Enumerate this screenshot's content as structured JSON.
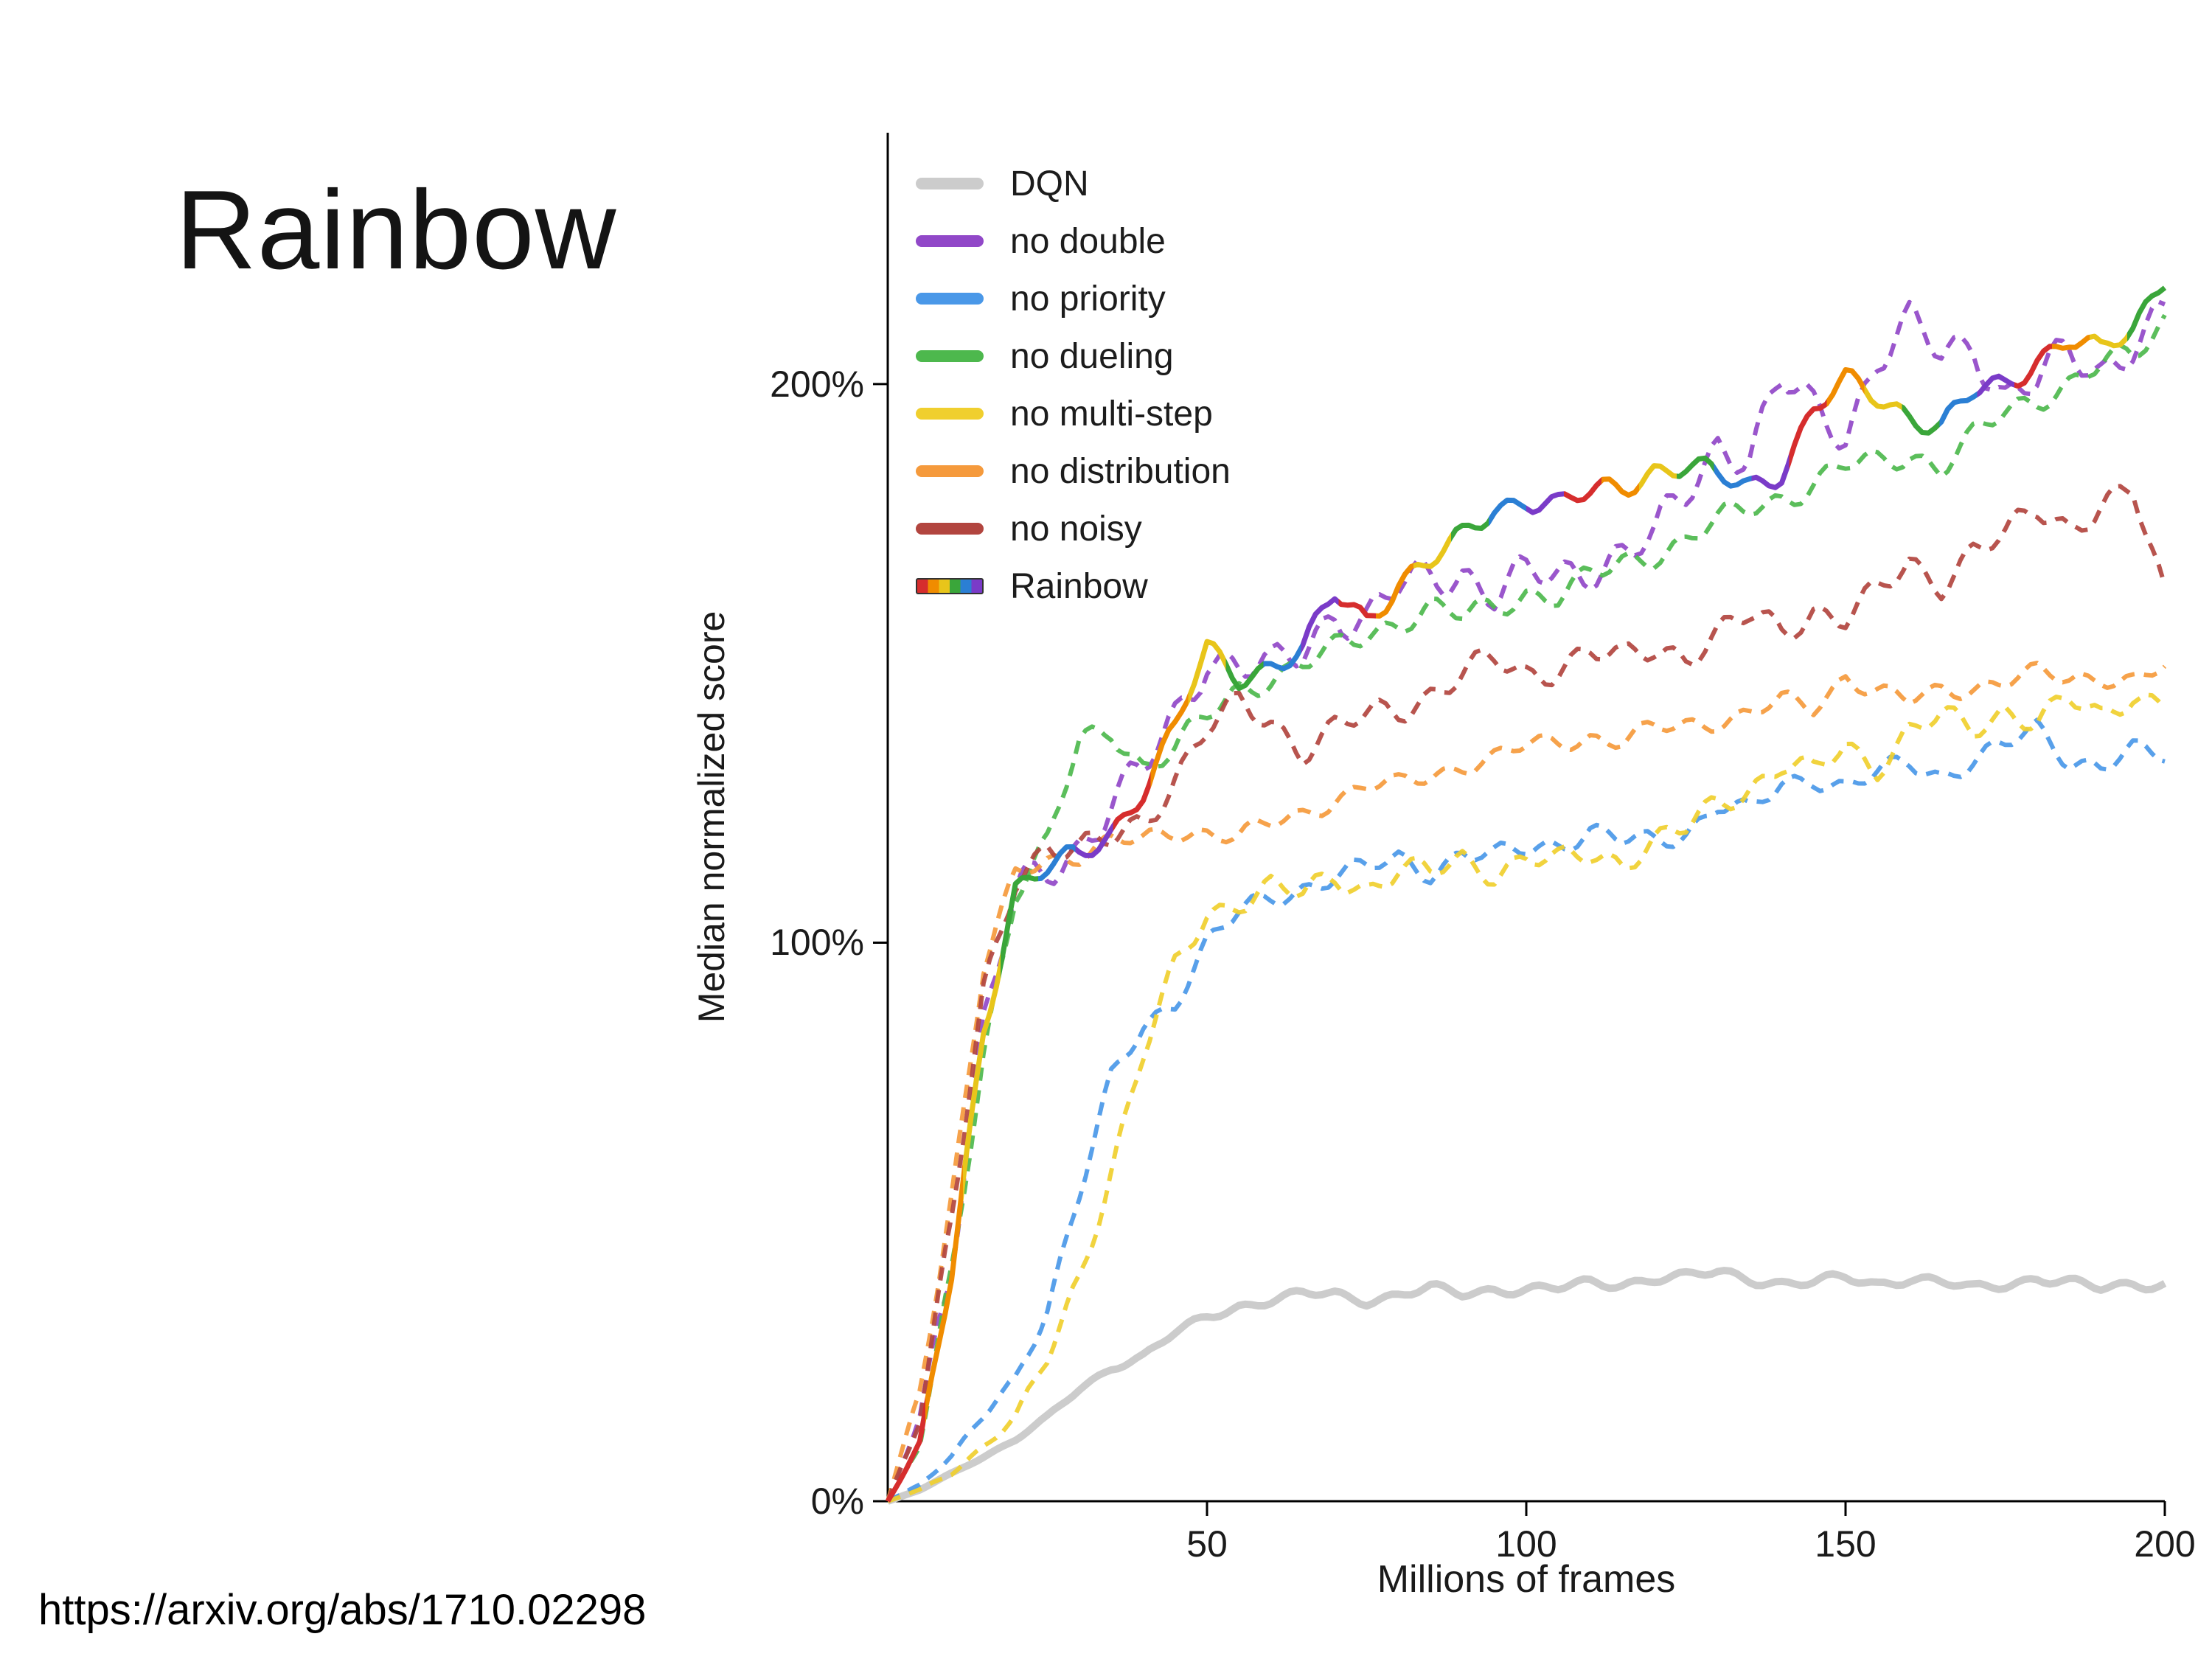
{
  "slide": {
    "title": "Rainbow",
    "url": "https://arxiv.org/abs/1710.02298"
  },
  "chart_data": {
    "type": "line",
    "title": "",
    "xlabel": "Millions of frames",
    "ylabel": "Median normalized score",
    "xlim": [
      0,
      200
    ],
    "ylim": [
      0,
      245
    ],
    "x_start": 0,
    "x_step": 5,
    "grid": false,
    "legend_position": "top-left",
    "x_ticks": [
      {
        "value": 50,
        "label": "50"
      },
      {
        "value": 100,
        "label": "100"
      },
      {
        "value": 150,
        "label": "150"
      },
      {
        "value": 200,
        "label": "200"
      }
    ],
    "y_ticks": [
      {
        "value": 0,
        "label": "0%"
      },
      {
        "value": 100,
        "label": "100%"
      },
      {
        "value": 200,
        "label": "200%"
      }
    ],
    "rainbow_colors": [
      "#d62d2d",
      "#f08c00",
      "#e8c51a",
      "#3aa63a",
      "#2b7fd4",
      "#7a3bc8"
    ],
    "series": [
      {
        "name": "DQN",
        "color": "#cccccc",
        "style": "solid",
        "width": 10,
        "noise": 1.2,
        "rainbow": false,
        "values": [
          0,
          2,
          5,
          8,
          11,
          15,
          20,
          24,
          26,
          30,
          33,
          35,
          36,
          37,
          37,
          36,
          37,
          38,
          37,
          38,
          38,
          38,
          39,
          39,
          40,
          40,
          41,
          40,
          39,
          39,
          40,
          39,
          40,
          39,
          38,
          39,
          40,
          39,
          38,
          39,
          39
        ]
      },
      {
        "name": "no double",
        "color": "#9148c8",
        "style": "dashed",
        "width": 6,
        "noise": 5,
        "rainbow": false,
        "values": [
          0,
          15,
          45,
          85,
          108,
          113,
          118,
          125,
          130,
          140,
          152,
          150,
          148,
          152,
          160,
          158,
          163,
          165,
          167,
          163,
          165,
          165,
          168,
          170,
          172,
          180,
          190,
          188,
          200,
          195,
          192,
          205,
          210,
          205,
          208,
          198,
          200,
          205,
          203,
          208,
          212
        ]
      },
      {
        "name": "no priority",
        "color": "#4a98e8",
        "style": "dashed",
        "width": 6,
        "noise": 2.5,
        "rainbow": false,
        "values": [
          0,
          3,
          8,
          15,
          22,
          35,
          55,
          75,
          85,
          90,
          100,
          105,
          108,
          110,
          112,
          113,
          115,
          113,
          116,
          115,
          117,
          118,
          120,
          118,
          118,
          120,
          125,
          123,
          128,
          130,
          128,
          130,
          132,
          130,
          133,
          135,
          138,
          133,
          132,
          134,
          133
        ]
      },
      {
        "name": "no dueling",
        "color": "#4db84d",
        "style": "dashed",
        "width": 6,
        "noise": 3,
        "rainbow": false,
        "values": [
          0,
          10,
          40,
          80,
          110,
          118,
          135,
          138,
          132,
          135,
          140,
          145,
          148,
          150,
          152,
          155,
          158,
          160,
          158,
          160,
          163,
          162,
          165,
          168,
          170,
          172,
          175,
          178,
          180,
          182,
          185,
          186,
          188,
          185,
          190,
          195,
          198,
          200,
          203,
          205,
          212
        ]
      },
      {
        "name": "no multi-step",
        "color": "#f0cf2e",
        "style": "dashed",
        "width": 6,
        "noise": 3,
        "rainbow": false,
        "values": [
          0,
          2,
          5,
          10,
          15,
          25,
          40,
          60,
          80,
          95,
          105,
          108,
          110,
          108,
          112,
          110,
          113,
          112,
          115,
          113,
          115,
          114,
          116,
          115,
          118,
          120,
          125,
          128,
          132,
          130,
          135,
          132,
          138,
          140,
          138,
          142,
          140,
          143,
          140,
          145,
          143
        ]
      },
      {
        "name": "no distribution",
        "color": "#f59a3c",
        "style": "dashed",
        "width": 6,
        "noise": 2.2,
        "rainbow": false,
        "values": [
          0,
          20,
          55,
          95,
          112,
          115,
          116,
          118,
          118,
          120,
          120,
          119,
          121,
          123,
          126,
          128,
          128,
          130,
          132,
          133,
          135,
          136,
          137,
          136,
          138,
          139,
          140,
          141,
          143,
          142,
          148,
          145,
          143,
          145,
          146,
          147,
          148,
          147,
          148,
          147,
          149
        ]
      },
      {
        "name": "no noisy",
        "color": "#b2453f",
        "style": "dashed",
        "width": 6,
        "noise": 3.5,
        "rainbow": false,
        "values": [
          0,
          15,
          50,
          90,
          112,
          118,
          116,
          118,
          122,
          130,
          138,
          142,
          140,
          135,
          138,
          140,
          142,
          145,
          148,
          150,
          148,
          150,
          152,
          150,
          153,
          152,
          155,
          158,
          156,
          160,
          158,
          162,
          168,
          165,
          170,
          172,
          178,
          175,
          178,
          180,
          162
        ]
      },
      {
        "name": "Rainbow",
        "color": "#000000",
        "style": "solid",
        "width": 7,
        "noise": 3,
        "rainbow": true,
        "values": [
          0,
          10,
          40,
          85,
          110,
          113,
          115,
          120,
          128,
          138,
          152,
          148,
          150,
          152,
          162,
          158,
          165,
          168,
          172,
          178,
          180,
          178,
          180,
          182,
          185,
          185,
          183,
          182,
          185,
          195,
          200,
          198,
          195,
          192,
          198,
          200,
          205,
          208,
          205,
          210,
          220
        ]
      }
    ]
  }
}
